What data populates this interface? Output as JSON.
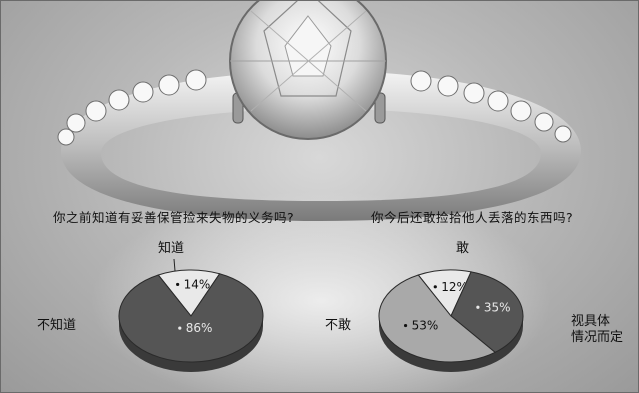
{
  "chart_data": [
    {
      "type": "pie",
      "title": "你之前知道有妥善保管捡来失物的义务吗?",
      "slices": [
        {
          "label": "知道",
          "value": 14,
          "value_text": "14%",
          "color": "#e9e9e9"
        },
        {
          "label": "不知道",
          "value": 86,
          "value_text": "86%",
          "color": "#555555"
        }
      ]
    },
    {
      "type": "pie",
      "title": "你今后还敢捡拾他人丢落的东西吗?",
      "slices": [
        {
          "label": "敢",
          "value": 12,
          "value_text": "12%",
          "color": "#e9e9e9"
        },
        {
          "label": "视具体情况而定",
          "label_lines": [
            "视具体",
            "情况而定"
          ],
          "value": 35,
          "value_text": "35%",
          "color": "#555555"
        },
        {
          "label": "不敢",
          "value": 53,
          "value_text": "53%",
          "color": "#a9a9a9"
        }
      ]
    }
  ]
}
